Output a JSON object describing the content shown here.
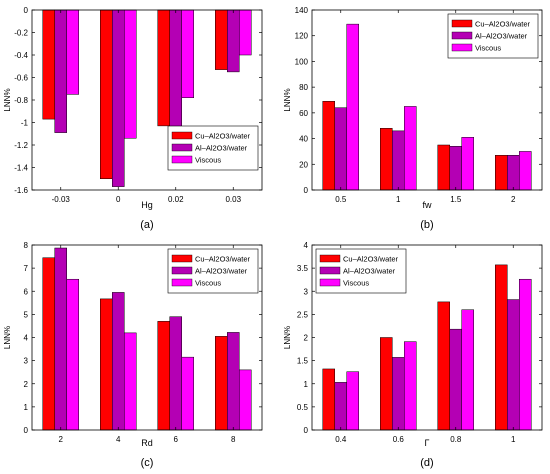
{
  "colors": {
    "series": [
      "#ff0000",
      "#b400b4",
      "#ff00ff"
    ],
    "axis": "#000000"
  },
  "chart_data": [
    {
      "type": "bar",
      "panel_label": "(a)",
      "xlabel": "Hg",
      "ylabel": "LNN%",
      "categories": [
        "-0.03",
        "0",
        "0.02",
        "0.03"
      ],
      "ylim": [
        -1.6,
        0
      ],
      "yticks": [
        "-1.6",
        "-1.4",
        "-1.2",
        "-1",
        "-0.8",
        "-0.6",
        "-0.4",
        "-0.2",
        "0"
      ],
      "ytick_values": [
        -1.6,
        -1.4,
        -1.2,
        -1,
        -0.8,
        -0.6,
        -0.4,
        -0.2,
        0
      ],
      "legend_position": "bottom-right",
      "series": [
        {
          "name": "Cu–Al2O3/water",
          "values": [
            -0.97,
            -1.5,
            -1.03,
            -0.53
          ]
        },
        {
          "name": "Al–Al2O3/water",
          "values": [
            -1.09,
            -1.57,
            -1.08,
            -0.55
          ]
        },
        {
          "name": "Viscous",
          "values": [
            -0.75,
            -1.14,
            -0.78,
            -0.4
          ]
        }
      ]
    },
    {
      "type": "bar",
      "panel_label": "(b)",
      "xlabel": "fw",
      "ylabel": "LNN%",
      "categories": [
        "0.5",
        "1",
        "1.5",
        "2"
      ],
      "ylim": [
        0,
        140
      ],
      "yticks": [
        "0",
        "20",
        "40",
        "60",
        "80",
        "100",
        "120",
        "140"
      ],
      "ytick_values": [
        0,
        20,
        40,
        60,
        80,
        100,
        120,
        140
      ],
      "legend_position": "top-right",
      "series": [
        {
          "name": "Cu–Al2O3/water",
          "values": [
            69,
            48,
            35,
            27
          ]
        },
        {
          "name": "Al–Al2O3/water",
          "values": [
            64,
            46,
            34,
            27
          ]
        },
        {
          "name": "Viscous",
          "values": [
            129,
            65,
            41,
            30
          ]
        }
      ]
    },
    {
      "type": "bar",
      "panel_label": "(c)",
      "xlabel": "Rd",
      "ylabel": "LNN%",
      "categories": [
        "2",
        "4",
        "6",
        "8"
      ],
      "ylim": [
        0,
        8
      ],
      "yticks": [
        "0",
        "1",
        "2",
        "3",
        "4",
        "5",
        "6",
        "7",
        "8"
      ],
      "ytick_values": [
        0,
        1,
        2,
        3,
        4,
        5,
        6,
        7,
        8
      ],
      "legend_position": "top-right",
      "series": [
        {
          "name": "Cu–Al2O3/water",
          "values": [
            7.45,
            5.67,
            4.7,
            4.05
          ]
        },
        {
          "name": "Al–Al2O3/water",
          "values": [
            7.87,
            5.95,
            4.9,
            4.22
          ]
        },
        {
          "name": "Viscous",
          "values": [
            6.52,
            4.2,
            3.15,
            2.6
          ]
        }
      ]
    },
    {
      "type": "bar",
      "panel_label": "(d)",
      "xlabel": "Γ",
      "ylabel": "LNN%",
      "categories": [
        "0.4",
        "0.6",
        "0.8",
        "1"
      ],
      "ylim": [
        0,
        4
      ],
      "yticks": [
        "0",
        "0.5",
        "1",
        "1.5",
        "2",
        "2.5",
        "3",
        "3.5",
        "4"
      ],
      "ytick_values": [
        0,
        0.5,
        1,
        1.5,
        2,
        2.5,
        3,
        3.5,
        4
      ],
      "legend_position": "top-left",
      "series": [
        {
          "name": "Cu–Al2O3/water",
          "values": [
            1.32,
            2.0,
            2.77,
            3.57
          ]
        },
        {
          "name": "Al–Al2O3/water",
          "values": [
            1.03,
            1.57,
            2.18,
            2.82
          ]
        },
        {
          "name": "Viscous",
          "values": [
            1.26,
            1.91,
            2.6,
            3.26
          ]
        }
      ]
    }
  ]
}
